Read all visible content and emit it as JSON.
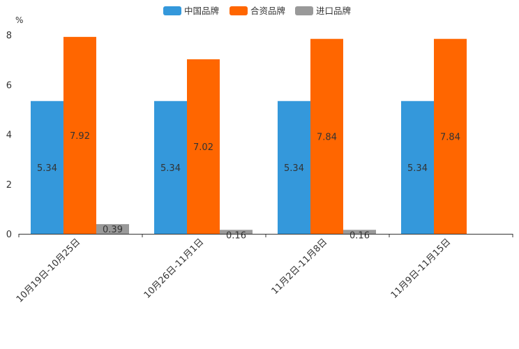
{
  "chart_data": {
    "type": "bar",
    "title": "",
    "xlabel": "",
    "ylabel": "%",
    "ylim": [
      0,
      8
    ],
    "yticks": [
      0,
      2,
      4,
      6,
      8
    ],
    "categories": [
      "10月19日-10月25日",
      "10月26日-11月1日",
      "11月2日-11月8日",
      "11月9日-11月15日"
    ],
    "series": [
      {
        "name": "中国品牌",
        "color": "#3498db",
        "values": [
          5.34,
          5.34,
          5.34,
          5.34
        ]
      },
      {
        "name": "合资品牌",
        "color": "#ff6600",
        "values": [
          7.92,
          7.02,
          7.84,
          7.84
        ]
      },
      {
        "name": "进口品牌",
        "color": "#999999",
        "values": [
          0.39,
          0.16,
          0.16,
          null
        ]
      }
    ],
    "legend_position": "top-center",
    "grid": false
  }
}
